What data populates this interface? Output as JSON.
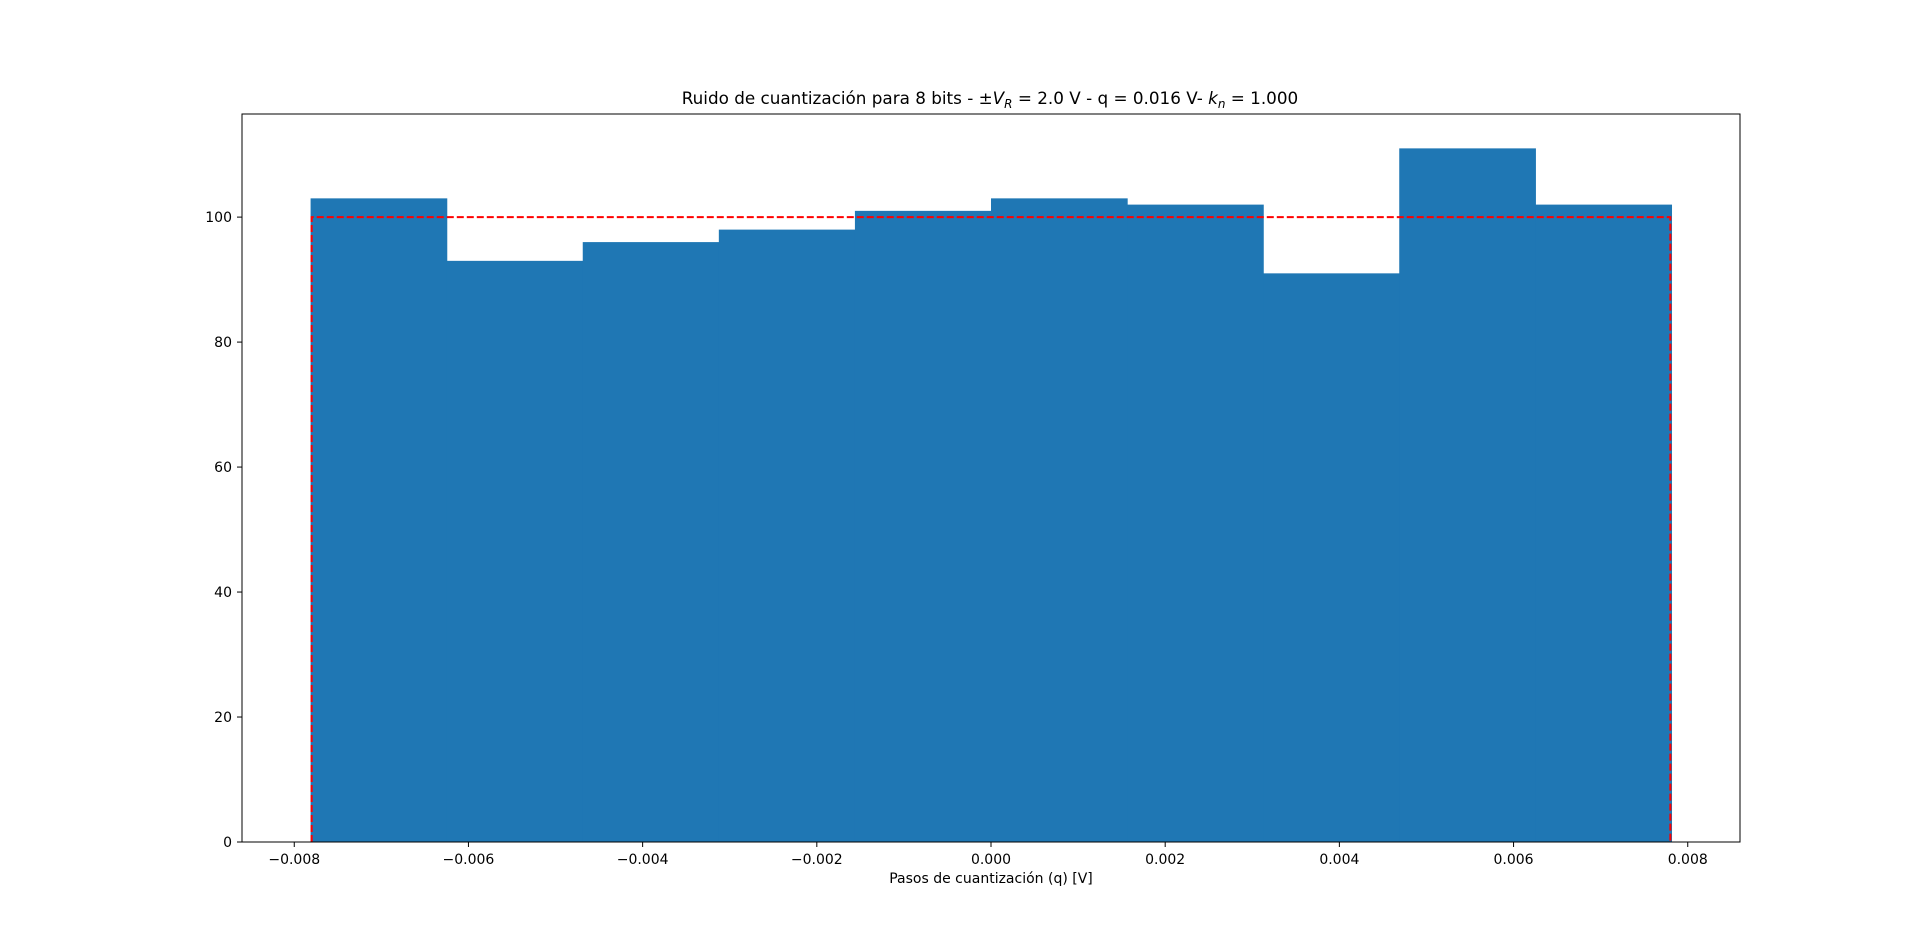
{
  "chart_data": {
    "type": "bar",
    "title_parts": {
      "before": "Ruido de cuantización para 8 bits - ±",
      "vr_var": "V",
      "vr_sub": "R",
      "middle": " =  2.0 V - q = 0.016 V- ",
      "kn_var": "k",
      "kn_sub": "n",
      "after": " = 1.000"
    },
    "xlabel": "Pasos de cuantización (q) [V]",
    "ylabel": "",
    "xlim": [
      -0.0086,
      0.0086
    ],
    "ylim": [
      0,
      116.5
    ],
    "bin_edges": [
      -0.0078125,
      -0.00625,
      -0.0046875,
      -0.003125,
      -0.0015625,
      0.0,
      0.0015625,
      0.003125,
      0.0046875,
      0.00625,
      0.0078125
    ],
    "values": [
      103,
      93,
      96,
      98,
      101,
      103,
      102,
      91,
      111,
      102
    ],
    "bar_color": "#1f77b4",
    "reference": {
      "value": 100,
      "x_start": -0.0078,
      "x_end": 0.0078,
      "color": "#ff0000",
      "style": "dashed"
    },
    "x_ticks": [
      {
        "value": -0.008,
        "label": "−0.008"
      },
      {
        "value": -0.006,
        "label": "−0.006"
      },
      {
        "value": -0.004,
        "label": "−0.004"
      },
      {
        "value": -0.002,
        "label": "−0.002"
      },
      {
        "value": 0.0,
        "label": "0.000"
      },
      {
        "value": 0.002,
        "label": "0.002"
      },
      {
        "value": 0.004,
        "label": "0.004"
      },
      {
        "value": 0.006,
        "label": "0.006"
      },
      {
        "value": 0.008,
        "label": "0.008"
      }
    ],
    "y_ticks": [
      {
        "value": 0,
        "label": "0"
      },
      {
        "value": 20,
        "label": "20"
      },
      {
        "value": 40,
        "label": "40"
      },
      {
        "value": 60,
        "label": "60"
      },
      {
        "value": 80,
        "label": "80"
      },
      {
        "value": 100,
        "label": "100"
      }
    ],
    "grid": false,
    "legend": "none"
  }
}
